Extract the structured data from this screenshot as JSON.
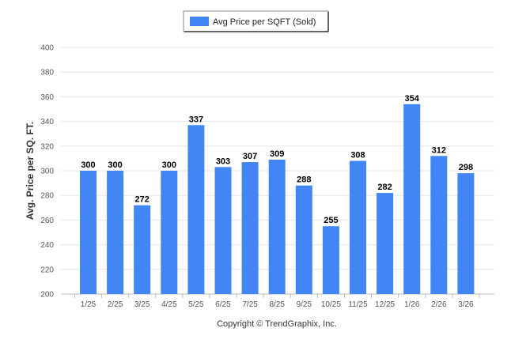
{
  "chart_data": {
    "type": "bar",
    "categories": [
      "1/25",
      "2/25",
      "3/25",
      "4/25",
      "5/25",
      "6/25",
      "7/25",
      "8/25",
      "9/25",
      "10/25",
      "11/25",
      "12/25",
      "1/26",
      "2/26",
      "3/26"
    ],
    "series": [
      {
        "name": "Avg Price per SQFT (Sold)",
        "values": [
          300,
          300,
          272,
          300,
          337,
          303,
          307,
          309,
          288,
          255,
          308,
          282,
          354,
          312,
          298
        ],
        "color": "#4285f4"
      }
    ],
    "ylabel": "Avg. Price per SQ. FT.",
    "xlabel": "",
    "ylim": [
      200,
      400
    ],
    "yticks": [
      200,
      220,
      240,
      260,
      280,
      300,
      320,
      340,
      360,
      380,
      400
    ],
    "grid": true,
    "legend_position": "top-center",
    "data_labels": true
  },
  "footer": {
    "copyright": "Copyright © TrendGraphix, Inc."
  }
}
